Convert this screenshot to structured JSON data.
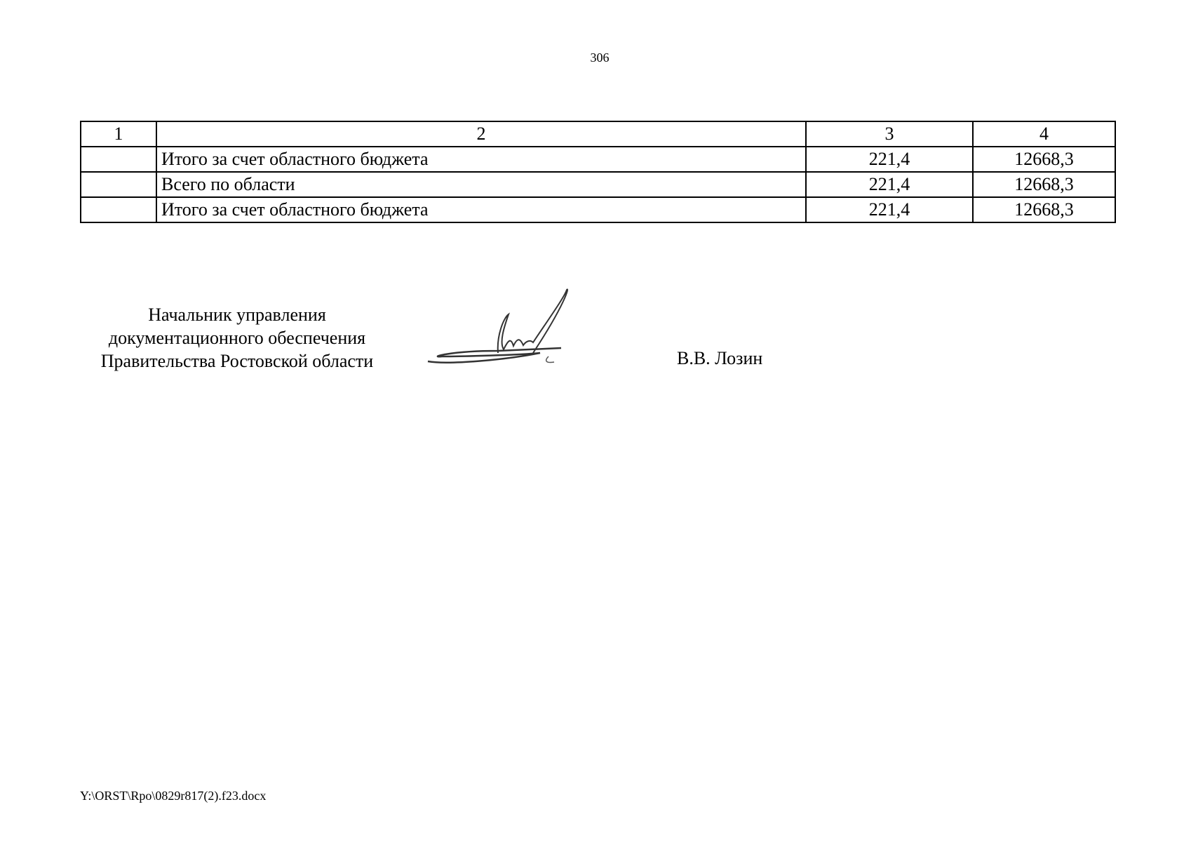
{
  "page_number": "306",
  "table": {
    "header": [
      "1",
      "2",
      "3",
      "4"
    ],
    "rows": [
      [
        "",
        "Итого за счет областного бюджета",
        "221,4",
        "12668,3"
      ],
      [
        "",
        "Всего по области",
        "221,4",
        "12668,3"
      ],
      [
        "",
        "Итого за счет областного бюджета",
        "221,4",
        "12668,3"
      ]
    ]
  },
  "signature_block": {
    "title_lines": [
      "Начальник управления",
      "документационного обеспечения",
      "Правительства Ростовской области"
    ],
    "name": "В.В. Лозин"
  },
  "footer": "Y:\\ORST\\Rpo\\0829r817(2).f23.docx"
}
